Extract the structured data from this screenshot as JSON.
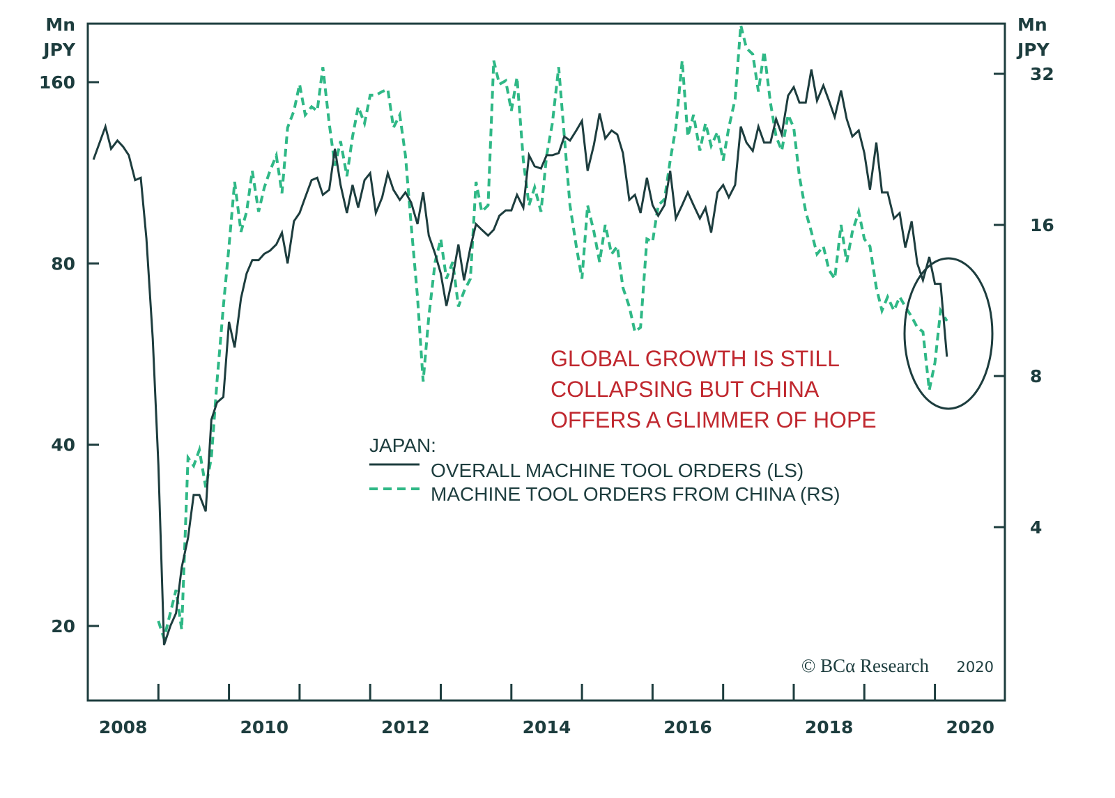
{
  "chart_data": {
    "type": "line",
    "title": "",
    "annotation": [
      "GLOBAL GROWTH IS STILL",
      "COLLAPSING BUT CHINA",
      "OFFERS A GLIMMER OF HOPE"
    ],
    "legend": {
      "title": "JAPAN:",
      "placement": "center",
      "entries": [
        {
          "label": "OVERALL MACHINE TOOL ORDERS (LS)",
          "style": "solid"
        },
        {
          "label": "MACHINE TOOL ORDERS FROM CHINA (RS)",
          "style": "dashed"
        }
      ]
    },
    "left_axis": {
      "unit": [
        "Mn",
        "JPY"
      ],
      "scale": "log2",
      "ticks": [
        20,
        40,
        80,
        160
      ],
      "range": [
        16,
        182
      ]
    },
    "right_axis": {
      "unit": [
        "Mn",
        "JPY"
      ],
      "scale": "log2",
      "ticks": [
        4,
        8,
        16,
        32
      ],
      "range": [
        2.2,
        41
      ]
    },
    "x_axis": {
      "tick_labels": [
        "2008",
        "2010",
        "2012",
        "2014",
        "2016",
        "2018",
        "2020"
      ],
      "range": [
        2008.0,
        2021.0
      ]
    },
    "grid": false,
    "copyright": {
      "text": "© BCα Research",
      "year": "2020"
    },
    "highlight": "ellipse around latest data (early 2020)",
    "colors": {
      "overall": "#1d3d3e",
      "china": "#2fb886",
      "annotation": "#c0282f",
      "axis": "#1d3d3e"
    },
    "series": [
      {
        "name": "OVERALL MACHINE TOOL ORDERS (LS)",
        "axis": "left",
        "points": [
          [
            2008.08,
            119
          ],
          [
            2008.25,
            135
          ],
          [
            2008.33,
            124
          ],
          [
            2008.42,
            128
          ],
          [
            2008.5,
            125
          ],
          [
            2008.58,
            121
          ],
          [
            2008.67,
            110
          ],
          [
            2008.75,
            111
          ],
          [
            2008.83,
            88
          ],
          [
            2008.92,
            60
          ],
          [
            2009.0,
            37
          ],
          [
            2009.08,
            18.6
          ],
          [
            2009.17,
            20
          ],
          [
            2009.25,
            21
          ],
          [
            2009.33,
            25
          ],
          [
            2009.42,
            28
          ],
          [
            2009.5,
            33
          ],
          [
            2009.58,
            33
          ],
          [
            2009.67,
            31
          ],
          [
            2009.75,
            44
          ],
          [
            2009.83,
            47
          ],
          [
            2009.92,
            48
          ],
          [
            2010.0,
            64
          ],
          [
            2010.08,
            58
          ],
          [
            2010.17,
            70
          ],
          [
            2010.25,
            77
          ],
          [
            2010.33,
            81
          ],
          [
            2010.42,
            81
          ],
          [
            2010.5,
            83
          ],
          [
            2010.58,
            84
          ],
          [
            2010.67,
            86
          ],
          [
            2010.75,
            90
          ],
          [
            2010.83,
            80
          ],
          [
            2010.92,
            94
          ],
          [
            2011.0,
            97
          ],
          [
            2011.08,
            103
          ],
          [
            2011.17,
            110
          ],
          [
            2011.25,
            111
          ],
          [
            2011.33,
            104
          ],
          [
            2011.42,
            106
          ],
          [
            2011.5,
            124
          ],
          [
            2011.58,
            108
          ],
          [
            2011.67,
            97
          ],
          [
            2011.75,
            108
          ],
          [
            2011.83,
            99
          ],
          [
            2011.92,
            110
          ],
          [
            2012.0,
            113
          ],
          [
            2012.08,
            97
          ],
          [
            2012.17,
            103
          ],
          [
            2012.25,
            113
          ],
          [
            2012.33,
            106
          ],
          [
            2012.42,
            102
          ],
          [
            2012.5,
            105
          ],
          [
            2012.58,
            101
          ],
          [
            2012.67,
            93
          ],
          [
            2012.75,
            105
          ],
          [
            2012.83,
            89
          ],
          [
            2012.92,
            83
          ],
          [
            2013.0,
            77
          ],
          [
            2013.08,
            68
          ],
          [
            2013.17,
            76
          ],
          [
            2013.25,
            86
          ],
          [
            2013.33,
            75
          ],
          [
            2013.42,
            85
          ],
          [
            2013.5,
            93
          ],
          [
            2013.58,
            91
          ],
          [
            2013.67,
            89
          ],
          [
            2013.75,
            91
          ],
          [
            2013.83,
            96
          ],
          [
            2013.92,
            98
          ],
          [
            2014.0,
            98
          ],
          [
            2014.08,
            104
          ],
          [
            2014.17,
            99
          ],
          [
            2014.25,
            121
          ],
          [
            2014.33,
            116
          ],
          [
            2014.42,
            115
          ],
          [
            2014.5,
            121
          ],
          [
            2014.58,
            121
          ],
          [
            2014.67,
            122
          ],
          [
            2014.75,
            130
          ],
          [
            2014.83,
            128
          ],
          [
            2014.92,
            133
          ],
          [
            2015.0,
            138
          ],
          [
            2015.08,
            114
          ],
          [
            2015.17,
            126
          ],
          [
            2015.25,
            142
          ],
          [
            2015.33,
            129
          ],
          [
            2015.42,
            133
          ],
          [
            2015.5,
            131
          ],
          [
            2015.58,
            122
          ],
          [
            2015.67,
            102
          ],
          [
            2015.75,
            104
          ],
          [
            2015.83,
            97
          ],
          [
            2015.92,
            111
          ],
          [
            2016.0,
            100
          ],
          [
            2016.08,
            96
          ],
          [
            2016.17,
            100
          ],
          [
            2016.25,
            114
          ],
          [
            2016.33,
            95
          ],
          [
            2016.42,
            100
          ],
          [
            2016.5,
            105
          ],
          [
            2016.58,
            100
          ],
          [
            2016.67,
            95
          ],
          [
            2016.75,
            99
          ],
          [
            2016.83,
            90
          ],
          [
            2016.92,
            105
          ],
          [
            2017.0,
            108
          ],
          [
            2017.08,
            103
          ],
          [
            2017.17,
            108
          ],
          [
            2017.25,
            135
          ],
          [
            2017.33,
            127
          ],
          [
            2017.42,
            123
          ],
          [
            2017.5,
            135
          ],
          [
            2017.58,
            127
          ],
          [
            2017.67,
            127
          ],
          [
            2017.75,
            139
          ],
          [
            2017.83,
            131
          ],
          [
            2017.92,
            152
          ],
          [
            2018.0,
            157
          ],
          [
            2018.08,
            148
          ],
          [
            2018.17,
            148
          ],
          [
            2018.25,
            168
          ],
          [
            2018.33,
            149
          ],
          [
            2018.42,
            158
          ],
          [
            2018.5,
            149
          ],
          [
            2018.58,
            140
          ],
          [
            2018.67,
            155
          ],
          [
            2018.75,
            139
          ],
          [
            2018.83,
            130
          ],
          [
            2018.92,
            133
          ],
          [
            2019.0,
            122
          ],
          [
            2019.08,
            106
          ],
          [
            2019.17,
            127
          ],
          [
            2019.25,
            105
          ],
          [
            2019.33,
            105
          ],
          [
            2019.42,
            95
          ],
          [
            2019.5,
            97
          ],
          [
            2019.58,
            85
          ],
          [
            2019.67,
            94
          ],
          [
            2019.75,
            80
          ],
          [
            2019.83,
            75
          ],
          [
            2019.92,
            82
          ],
          [
            2020.0,
            74
          ],
          [
            2020.08,
            74
          ],
          [
            2020.17,
            56
          ]
        ]
      },
      {
        "name": "MACHINE TOOL ORDERS FROM CHINA (RS)",
        "axis": "right",
        "points": [
          [
            2009.0,
            2.6
          ],
          [
            2009.08,
            2.4
          ],
          [
            2009.17,
            2.7
          ],
          [
            2009.25,
            3.0
          ],
          [
            2009.33,
            2.5
          ],
          [
            2009.42,
            5.5
          ],
          [
            2009.5,
            5.3
          ],
          [
            2009.58,
            5.7
          ],
          [
            2009.67,
            4.8
          ],
          [
            2009.75,
            5.5
          ],
          [
            2009.83,
            7.8
          ],
          [
            2009.92,
            11.0
          ],
          [
            2010.0,
            14.5
          ],
          [
            2010.08,
            19.5
          ],
          [
            2010.17,
            15.5
          ],
          [
            2010.25,
            17.0
          ],
          [
            2010.33,
            20.5
          ],
          [
            2010.42,
            17.0
          ],
          [
            2010.5,
            19.0
          ],
          [
            2010.58,
            20.5
          ],
          [
            2010.67,
            22.0
          ],
          [
            2010.75,
            18.5
          ],
          [
            2010.83,
            25.0
          ],
          [
            2010.92,
            27.0
          ],
          [
            2011.0,
            30.5
          ],
          [
            2011.08,
            26.5
          ],
          [
            2011.17,
            27.5
          ],
          [
            2011.25,
            27.0
          ],
          [
            2011.33,
            33.0
          ],
          [
            2011.42,
            25.5
          ],
          [
            2011.5,
            21.0
          ],
          [
            2011.58,
            23.5
          ],
          [
            2011.67,
            20.0
          ],
          [
            2011.75,
            24.0
          ],
          [
            2011.83,
            27.5
          ],
          [
            2011.92,
            25.5
          ],
          [
            2012.0,
            29.0
          ],
          [
            2012.08,
            29.0
          ],
          [
            2012.17,
            29.5
          ],
          [
            2012.25,
            29.8
          ],
          [
            2012.33,
            25.0
          ],
          [
            2012.42,
            26.5
          ],
          [
            2012.5,
            22.0
          ],
          [
            2012.58,
            16.0
          ],
          [
            2012.67,
            11.5
          ],
          [
            2012.75,
            7.8
          ],
          [
            2012.83,
            10.5
          ],
          [
            2012.92,
            13.5
          ],
          [
            2013.0,
            15.0
          ],
          [
            2013.08,
            12.5
          ],
          [
            2013.17,
            13.5
          ],
          [
            2013.25,
            11.0
          ],
          [
            2013.33,
            11.8
          ],
          [
            2013.42,
            12.5
          ],
          [
            2013.5,
            19.5
          ],
          [
            2013.58,
            17.0
          ],
          [
            2013.67,
            17.5
          ],
          [
            2013.75,
            34.0
          ],
          [
            2013.83,
            30.5
          ],
          [
            2013.92,
            31.0
          ],
          [
            2014.0,
            27.0
          ],
          [
            2014.08,
            31.5
          ],
          [
            2014.17,
            21.5
          ],
          [
            2014.25,
            17.5
          ],
          [
            2014.33,
            19.0
          ],
          [
            2014.42,
            17.0
          ],
          [
            2014.5,
            22.0
          ],
          [
            2014.58,
            25.5
          ],
          [
            2014.67,
            33.0
          ],
          [
            2014.75,
            24.0
          ],
          [
            2014.83,
            17.5
          ],
          [
            2014.92,
            14.5
          ],
          [
            2015.0,
            12.5
          ],
          [
            2015.08,
            17.5
          ],
          [
            2015.17,
            15.5
          ],
          [
            2015.25,
            13.5
          ],
          [
            2015.33,
            16.0
          ],
          [
            2015.42,
            14.0
          ],
          [
            2015.5,
            14.5
          ],
          [
            2015.58,
            12.0
          ],
          [
            2015.67,
            11.0
          ],
          [
            2015.75,
            9.8
          ],
          [
            2015.83,
            10.0
          ],
          [
            2015.92,
            15.0
          ],
          [
            2016.0,
            14.8
          ],
          [
            2016.08,
            17.5
          ],
          [
            2016.17,
            18.0
          ],
          [
            2016.25,
            21.5
          ],
          [
            2016.33,
            25.0
          ],
          [
            2016.42,
            34.0
          ],
          [
            2016.5,
            24.0
          ],
          [
            2016.58,
            26.5
          ],
          [
            2016.67,
            22.5
          ],
          [
            2016.75,
            25.5
          ],
          [
            2016.83,
            23.0
          ],
          [
            2016.92,
            24.5
          ],
          [
            2017.0,
            21.5
          ],
          [
            2017.08,
            25.0
          ],
          [
            2017.17,
            28.5
          ],
          [
            2017.25,
            40.0
          ],
          [
            2017.33,
            36.0
          ],
          [
            2017.42,
            35.0
          ],
          [
            2017.5,
            29.5
          ],
          [
            2017.58,
            35.5
          ],
          [
            2017.67,
            28.0
          ],
          [
            2017.75,
            24.0
          ],
          [
            2017.83,
            22.5
          ],
          [
            2017.92,
            26.5
          ],
          [
            2018.0,
            25.0
          ],
          [
            2018.08,
            20.0
          ],
          [
            2018.17,
            17.0
          ],
          [
            2018.25,
            15.5
          ],
          [
            2018.33,
            14.0
          ],
          [
            2018.42,
            14.5
          ],
          [
            2018.5,
            13.0
          ],
          [
            2018.58,
            12.5
          ],
          [
            2018.67,
            16.0
          ],
          [
            2018.75,
            13.5
          ],
          [
            2018.83,
            15.5
          ],
          [
            2018.92,
            17.0
          ],
          [
            2019.0,
            15.0
          ],
          [
            2019.08,
            14.5
          ],
          [
            2019.17,
            12.0
          ],
          [
            2019.25,
            10.8
          ],
          [
            2019.33,
            11.5
          ],
          [
            2019.42,
            10.8
          ],
          [
            2019.5,
            11.5
          ],
          [
            2019.58,
            11.0
          ],
          [
            2019.67,
            10.5
          ],
          [
            2019.75,
            10.0
          ],
          [
            2019.83,
            9.8
          ],
          [
            2019.92,
            7.5
          ],
          [
            2020.0,
            8.5
          ],
          [
            2020.08,
            10.8
          ],
          [
            2020.17,
            10.3
          ]
        ]
      }
    ]
  }
}
